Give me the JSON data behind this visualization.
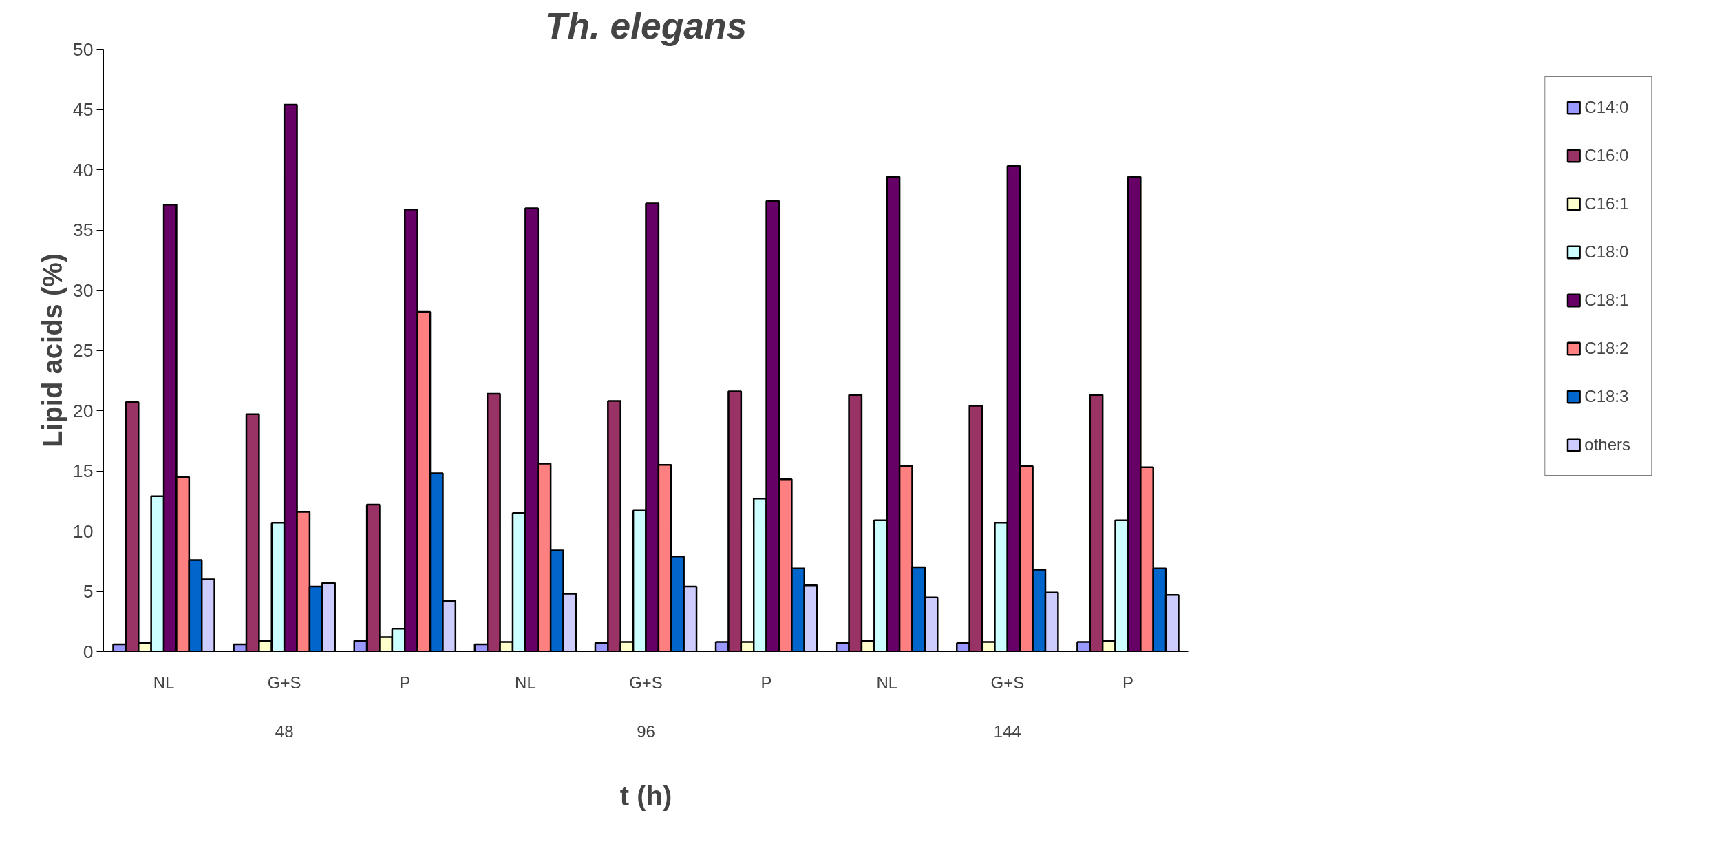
{
  "chart_data": {
    "type": "bar",
    "title": "Th. elegans",
    "xlabel": "t (h)",
    "ylabel": "Lipid acids (%)",
    "categories": [
      "NL",
      "G+S",
      "P",
      "NL",
      "G+S",
      "P",
      "NL",
      "G+S",
      "P"
    ],
    "annotations": [
      "48",
      "96",
      "144"
    ],
    "ylim": [
      0,
      50
    ],
    "yticks": [
      0,
      5,
      10,
      15,
      20,
      25,
      30,
      35,
      40,
      45,
      50
    ],
    "grid": false,
    "legend": "right",
    "series": [
      {
        "name": "C14:0",
        "color": "#9999ff",
        "values": [
          0.6,
          0.6,
          0.9,
          0.6,
          0.7,
          0.8,
          0.7,
          0.7,
          0.8
        ]
      },
      {
        "name": "C16:0",
        "color": "#993366",
        "values": [
          20.7,
          19.7,
          12.2,
          21.4,
          20.8,
          21.6,
          21.3,
          20.4,
          21.3
        ]
      },
      {
        "name": "C16:1",
        "color": "#ffffcc",
        "values": [
          0.7,
          0.9,
          1.2,
          0.8,
          0.8,
          0.8,
          0.9,
          0.8,
          0.9
        ]
      },
      {
        "name": "C18:0",
        "color": "#ccffff",
        "values": [
          12.9,
          10.7,
          1.9,
          11.5,
          11.7,
          12.7,
          10.9,
          10.7,
          10.9
        ]
      },
      {
        "name": "C18:1",
        "color": "#660066",
        "values": [
          37.1,
          45.4,
          36.7,
          36.8,
          37.2,
          37.4,
          39.4,
          40.3,
          39.4
        ]
      },
      {
        "name": "C18:2",
        "color": "#ff8080",
        "values": [
          14.5,
          11.6,
          28.2,
          15.6,
          15.5,
          14.3,
          15.4,
          15.4,
          15.3
        ]
      },
      {
        "name": "C18:3",
        "color": "#0066cc",
        "values": [
          7.6,
          5.4,
          14.8,
          8.4,
          7.9,
          6.9,
          7.0,
          6.8,
          6.9
        ]
      },
      {
        "name": "others",
        "color": "#ccccff",
        "values": [
          6.0,
          5.7,
          4.2,
          4.8,
          5.4,
          5.5,
          4.5,
          4.9,
          4.7
        ]
      }
    ]
  }
}
